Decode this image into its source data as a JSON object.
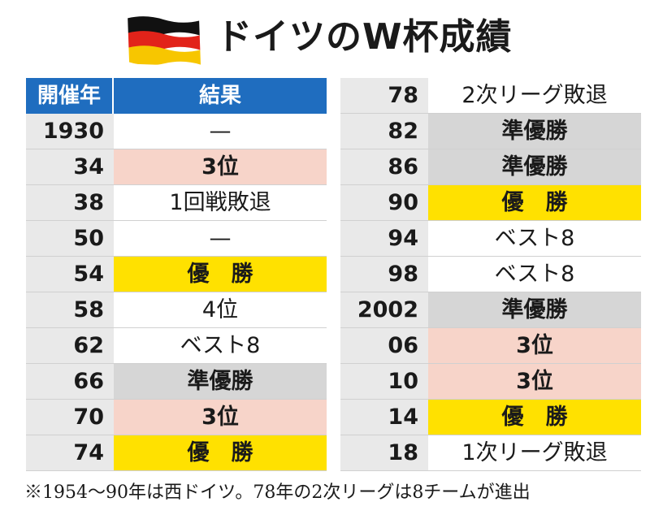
{
  "title": "ドイツのW杯成績",
  "colors": {
    "header": "#1f6dbf",
    "winner": "#ffe100",
    "runner_up": "#d6d6d6",
    "third": "#f7d4c9",
    "year_cell": "#e9e9e9"
  },
  "header": {
    "year": "開催年",
    "result": "結果"
  },
  "left_rows": [
    {
      "year": "1930",
      "result": "—",
      "type": "plain"
    },
    {
      "year": "34",
      "result": "3位",
      "type": "third"
    },
    {
      "year": "38",
      "result": "1回戦敗退",
      "type": "plain"
    },
    {
      "year": "50",
      "result": "—",
      "type": "plain"
    },
    {
      "year": "54",
      "result": "優　勝",
      "type": "winner"
    },
    {
      "year": "58",
      "result": "4位",
      "type": "plain"
    },
    {
      "year": "62",
      "result": "ベスト8",
      "type": "plain"
    },
    {
      "year": "66",
      "result": "準優勝",
      "type": "runner_up"
    },
    {
      "year": "70",
      "result": "3位",
      "type": "third"
    },
    {
      "year": "74",
      "result": "優　勝",
      "type": "winner"
    }
  ],
  "right_rows": [
    {
      "year": "78",
      "result": "2次リーグ敗退",
      "type": "plain"
    },
    {
      "year": "82",
      "result": "準優勝",
      "type": "runner_up"
    },
    {
      "year": "86",
      "result": "準優勝",
      "type": "runner_up"
    },
    {
      "year": "90",
      "result": "優　勝",
      "type": "winner"
    },
    {
      "year": "94",
      "result": "ベスト8",
      "type": "plain"
    },
    {
      "year": "98",
      "result": "ベスト8",
      "type": "plain"
    },
    {
      "year": "2002",
      "result": "準優勝",
      "type": "runner_up"
    },
    {
      "year": "06",
      "result": "3位",
      "type": "third"
    },
    {
      "year": "10",
      "result": "3位",
      "type": "third"
    },
    {
      "year": "14",
      "result": "優　勝",
      "type": "winner"
    },
    {
      "year": "18",
      "result": "1次リーグ敗退",
      "type": "plain"
    }
  ],
  "note": "※1954〜90年は西ドイツ。78年の2次リーグは8チームが進出"
}
